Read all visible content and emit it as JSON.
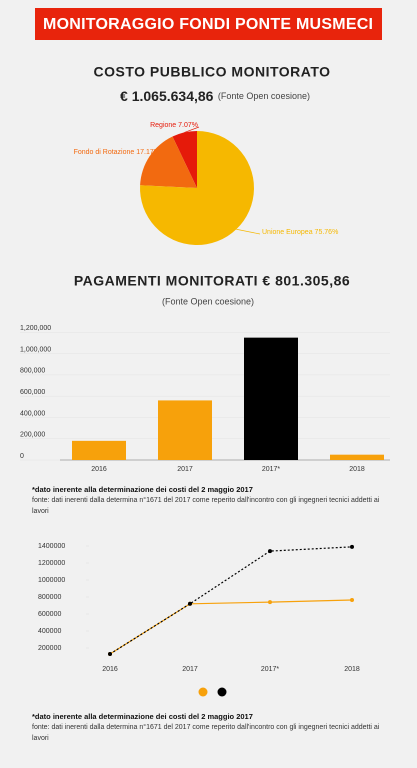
{
  "header": {
    "title": "MONITORAGGIO FONDI PONTE MUSMECI"
  },
  "chart_data": [
    {
      "type": "pie",
      "title": "COSTO PUBBLICO MONITORATO",
      "amount": "€ 1.065.634,86",
      "source": "(Fonte Open coesione)",
      "categories": [
        "Regione",
        "Fondo di Rotazione",
        "Unione Europea"
      ],
      "values": [
        7.07,
        17.17,
        75.76
      ],
      "value_labels": [
        "7.07%",
        "17.17%",
        "75.76%"
      ],
      "colors": [
        "#e51a0a",
        "#f26a10",
        "#f6b800"
      ]
    },
    {
      "type": "bar",
      "title": "PAGAMENTI MONITORATI € 801.305,86",
      "subtitle": "(Fonte Open coesione)",
      "categories": [
        "2016",
        "2017",
        "2017*",
        "2018"
      ],
      "values": [
        180000,
        560000,
        1150000,
        50000
      ],
      "colors": [
        "#f7a10b",
        "#f7a10b",
        "#000000",
        "#f7a10b"
      ],
      "ylim": [
        0,
        1250000
      ],
      "yticks": [
        0,
        {
          "value": 200000,
          "label": "200,000"
        },
        {
          "value": 400000,
          "label": "400,000"
        },
        {
          "value": 600000,
          "label": "600,000"
        },
        {
          "value": 800000,
          "label": "800,000"
        },
        {
          "value": 1000000,
          "label": "1,000,000"
        },
        {
          "value": 1200000,
          "label": "1,200,000"
        }
      ],
      "note": "*dato inerente alla determinazione dei costi del 2 maggio 2017",
      "source_note": "fonte: dati inerenti dalla determina n°1671 del 2017 come reperito dall'incontro con gli ingegneri tecnici addetti ai lavori"
    },
    {
      "type": "line",
      "categories": [
        "2016",
        "2017",
        "2017*",
        "2018"
      ],
      "series": [
        {
          "color": "#f7a10b",
          "style": "solid",
          "values": [
            130000,
            720000,
            740000,
            765000
          ]
        },
        {
          "color": "#000000",
          "style": "dashed",
          "values": [
            130000,
            720000,
            1340000,
            1390000
          ]
        }
      ],
      "ylim": [
        100000,
        1500000
      ],
      "yticks": [
        200000,
        400000,
        600000,
        800000,
        1000000,
        1200000,
        1400000
      ],
      "note": "*dato inerente alla determinazione dei costi del 2 maggio 2017",
      "source_note": "fonte: dati inerenti dalla determina n°1671 del 2017 come reperito dall'incontro con gli ingegneri tecnici addetti ai lavori"
    }
  ]
}
